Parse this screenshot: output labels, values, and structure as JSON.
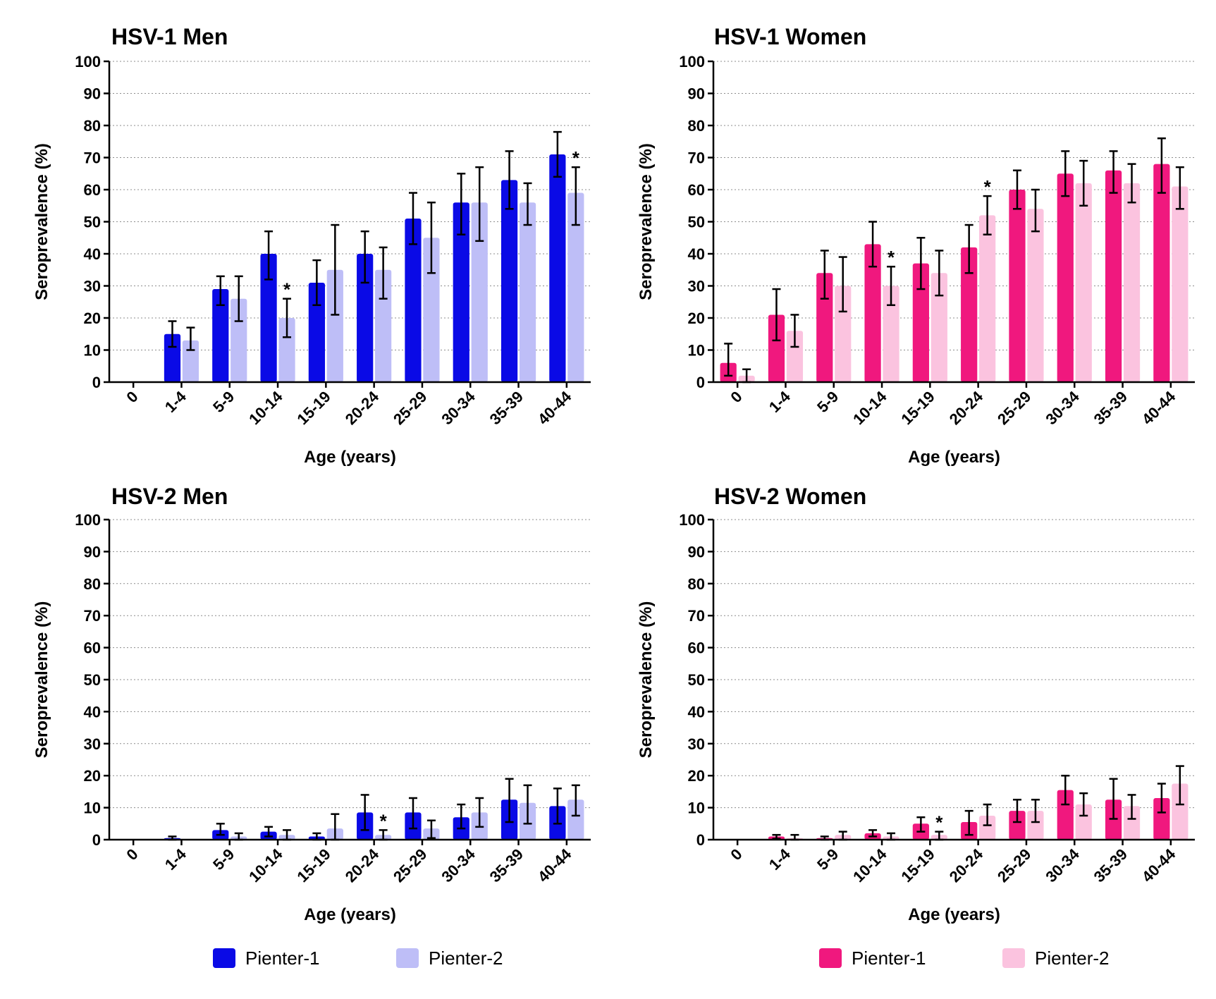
{
  "chart_data": [
    {
      "type": "bar",
      "title": "HSV-1 Men",
      "xlabel": "Age (years)",
      "ylabel": "Seroprevalence (%)",
      "ylim": [
        0,
        100
      ],
      "yticks": [
        0,
        10,
        20,
        30,
        40,
        50,
        60,
        70,
        80,
        90,
        100
      ],
      "grid": "horizontal dotted",
      "categories": [
        "0",
        "1-4",
        "5-9",
        "10-14",
        "15-19",
        "20-24",
        "25-29",
        "30-34",
        "35-39",
        "40-44"
      ],
      "series": [
        {
          "name": "Pienter-1",
          "color": "#0a0ae6",
          "values": [
            null,
            15,
            29,
            40,
            31,
            40,
            51,
            56,
            63,
            71
          ],
          "err_low": [
            null,
            11,
            24,
            32,
            24,
            31,
            43,
            46,
            54,
            64
          ],
          "err_high": [
            null,
            19,
            33,
            47,
            38,
            47,
            59,
            65,
            72,
            78
          ]
        },
        {
          "name": "Pienter-2",
          "color": "#bebef7",
          "values": [
            null,
            13,
            26,
            20,
            35,
            35,
            45,
            56,
            56,
            59
          ],
          "err_low": [
            null,
            10,
            19,
            14,
            21,
            26,
            34,
            44,
            49,
            49
          ],
          "err_high": [
            null,
            17,
            33,
            26,
            49,
            42,
            56,
            67,
            62,
            67
          ]
        }
      ],
      "significance": [
        {
          "category": "10-14",
          "series": "Pienter-2",
          "label": "*"
        },
        {
          "category": "40-44",
          "series": "Pienter-2",
          "label": "*"
        }
      ],
      "legend": "bottom"
    },
    {
      "type": "bar",
      "title": "HSV-1 Women",
      "xlabel": "Age (years)",
      "ylabel": "Seroprevalence (%)",
      "ylim": [
        0,
        100
      ],
      "yticks": [
        0,
        10,
        20,
        30,
        40,
        50,
        60,
        70,
        80,
        90,
        100
      ],
      "grid": "horizontal dotted",
      "categories": [
        "0",
        "1-4",
        "5-9",
        "10-14",
        "15-19",
        "20-24",
        "25-29",
        "30-34",
        "35-39",
        "40-44"
      ],
      "series": [
        {
          "name": "Pienter-1",
          "color": "#f0187e",
          "values": [
            6,
            21,
            34,
            43,
            37,
            42,
            60,
            65,
            66,
            68
          ],
          "err_low": [
            2,
            13,
            26,
            36,
            29,
            34,
            54,
            58,
            59,
            59
          ],
          "err_high": [
            12,
            29,
            41,
            50,
            45,
            49,
            66,
            72,
            72,
            76
          ]
        },
        {
          "name": "Pienter-2",
          "color": "#fbc3df",
          "values": [
            2,
            16,
            30,
            30,
            34,
            52,
            54,
            62,
            62,
            61
          ],
          "err_low": [
            0,
            11,
            22,
            24,
            27,
            46,
            47,
            55,
            56,
            54
          ],
          "err_high": [
            4,
            21,
            39,
            36,
            41,
            58,
            60,
            69,
            68,
            67
          ]
        }
      ],
      "significance": [
        {
          "category": "10-14",
          "series": "Pienter-2",
          "label": "*"
        },
        {
          "category": "20-24",
          "series": "Pienter-2",
          "label": "*"
        }
      ],
      "legend": "bottom"
    },
    {
      "type": "bar",
      "title": "HSV-2 Men",
      "xlabel": "Age (years)",
      "ylabel": "Seroprevalence (%)",
      "ylim": [
        0,
        100
      ],
      "yticks": [
        0,
        10,
        20,
        30,
        40,
        50,
        60,
        70,
        80,
        90,
        100
      ],
      "grid": "horizontal dotted",
      "categories": [
        "0",
        "1-4",
        "5-9",
        "10-14",
        "15-19",
        "20-24",
        "25-29",
        "30-34",
        "35-39",
        "40-44"
      ],
      "series": [
        {
          "name": "Pienter-1",
          "color": "#0a0ae6",
          "values": [
            null,
            0.5,
            3,
            2.5,
            1,
            8.5,
            8.5,
            7,
            12.5,
            10.5
          ],
          "err_low": [
            null,
            0,
            1.5,
            1,
            0,
            3,
            3.5,
            3.5,
            5.5,
            5
          ],
          "err_high": [
            null,
            1,
            5,
            4,
            2,
            14,
            13,
            11,
            19,
            16
          ]
        },
        {
          "name": "Pienter-2",
          "color": "#bebef7",
          "values": [
            null,
            null,
            1,
            1.5,
            3.5,
            1.5,
            3.5,
            8.5,
            11.5,
            12.5
          ],
          "err_low": [
            null,
            null,
            0,
            0,
            0,
            0,
            0.5,
            4,
            5,
            7.5
          ],
          "err_high": [
            null,
            null,
            2,
            3,
            8,
            3,
            6,
            13,
            17,
            17
          ]
        }
      ],
      "significance": [
        {
          "category": "20-24",
          "series": "Pienter-2",
          "label": "*"
        }
      ],
      "legend": "bottom"
    },
    {
      "type": "bar",
      "title": "HSV-2 Women",
      "xlabel": "Age (years)",
      "ylabel": "Seroprevalence (%)",
      "ylim": [
        0,
        100
      ],
      "yticks": [
        0,
        10,
        20,
        30,
        40,
        50,
        60,
        70,
        80,
        90,
        100
      ],
      "grid": "horizontal dotted",
      "categories": [
        "0",
        "1-4",
        "5-9",
        "10-14",
        "15-19",
        "20-24",
        "25-29",
        "30-34",
        "35-39",
        "40-44"
      ],
      "series": [
        {
          "name": "Pienter-1",
          "color": "#f0187e",
          "values": [
            null,
            1,
            0.5,
            2,
            5,
            5.5,
            9,
            15.5,
            12.5,
            13
          ],
          "err_low": [
            null,
            0.3,
            0,
            1,
            2.5,
            1.5,
            5.5,
            11,
            6.5,
            8.5
          ],
          "err_high": [
            null,
            1.5,
            1,
            3,
            7,
            9,
            12.5,
            20,
            19,
            17.5
          ]
        },
        {
          "name": "Pienter-2",
          "color": "#fbc3df",
          "values": [
            null,
            0.5,
            1.5,
            1,
            1.5,
            7.5,
            9,
            11,
            10.5,
            17.5
          ],
          "err_low": [
            null,
            0,
            0,
            0,
            0,
            4.5,
            5.5,
            7.5,
            6.5,
            11
          ],
          "err_high": [
            null,
            1.5,
            2.5,
            2,
            2.5,
            11,
            12.5,
            14.5,
            14,
            23
          ]
        }
      ],
      "significance": [
        {
          "category": "15-19",
          "series": "Pienter-2",
          "label": "*"
        }
      ],
      "legend": "bottom"
    }
  ],
  "legends": [
    {
      "items": [
        {
          "label": "Pienter-1",
          "color": "#0a0ae6"
        },
        {
          "label": "Pienter-2",
          "color": "#bebef7"
        }
      ]
    },
    {
      "items": [
        {
          "label": "Pienter-1",
          "color": "#f0187e"
        },
        {
          "label": "Pienter-2",
          "color": "#fbc3df"
        }
      ]
    }
  ]
}
